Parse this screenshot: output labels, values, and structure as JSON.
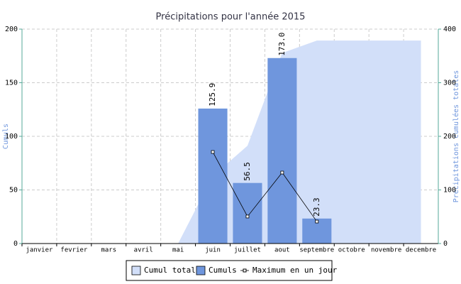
{
  "chart_data": {
    "type": "combo",
    "title": "Précipitations pour l'année 2015",
    "ylabel": "Cumuls",
    "y2label": "Précipitations cumulées totales",
    "categories": [
      "janvier",
      "fevrier",
      "mars",
      "avril",
      "mai",
      "juin",
      "juillet",
      "aout",
      "septembre",
      "octobre",
      "novembre",
      "decembre"
    ],
    "ylim": [
      0,
      200
    ],
    "yticks": [
      0,
      50,
      100,
      150,
      200
    ],
    "y2lim": [
      0,
      400
    ],
    "y2ticks": [
      0,
      100,
      200,
      300,
      400
    ],
    "grid": true,
    "legend": "bottom",
    "series": [
      {
        "name": "Cumul total",
        "type": "area",
        "axis": "y2",
        "color": "#d2dff9",
        "values": [
          null,
          null,
          null,
          null,
          0,
          125.9,
          182.4,
          355.4,
          378.7,
          378.7,
          378.7,
          378.7
        ]
      },
      {
        "name": "Cumuls",
        "type": "bar",
        "color": "#6f96dd",
        "values": [
          null,
          null,
          null,
          null,
          null,
          125.9,
          56.5,
          173,
          23.3,
          null,
          null,
          null
        ],
        "value_labels": [
          null,
          null,
          null,
          null,
          null,
          "125.9",
          "56.5",
          "173.0",
          "23.3",
          null,
          null,
          null
        ]
      },
      {
        "name": "Maximum en un jour",
        "type": "line",
        "color": "#000000",
        "values": [
          null,
          null,
          null,
          null,
          null,
          85.4,
          25.2,
          66.2,
          20.5,
          null,
          null,
          null
        ]
      }
    ]
  }
}
